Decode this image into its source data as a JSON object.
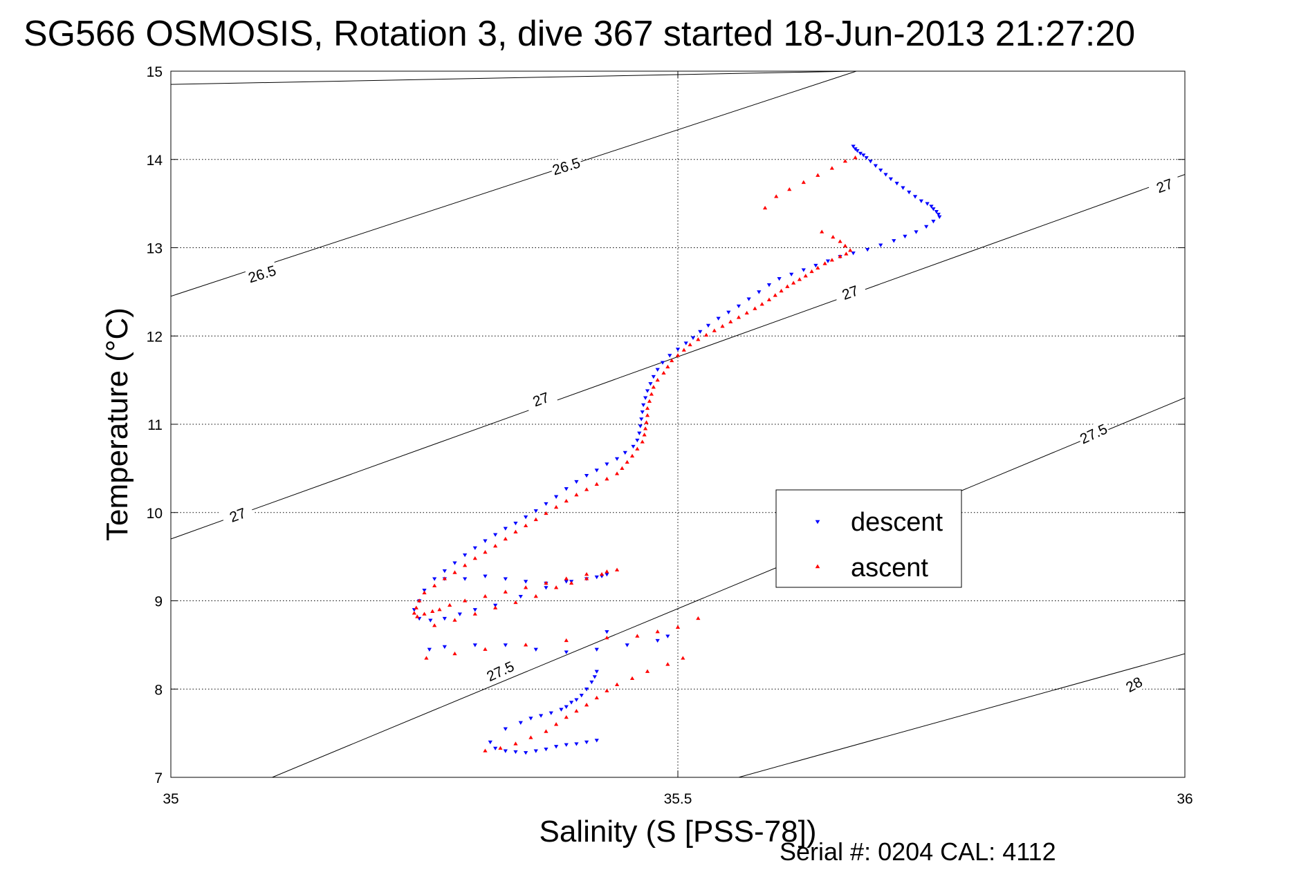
{
  "chart_data": {
    "type": "scatter",
    "title": "SG566 OSMOSIS, Rotation 3, dive 367 started 18-Jun-2013 21:27:20",
    "xlabel": "Salinity (S [PSS-78])",
    "ylabel": "Temperature (°C)",
    "xlim": [
      35,
      36
    ],
    "ylim": [
      7,
      15
    ],
    "x_ticks": [
      "35",
      "35.5",
      "36"
    ],
    "y_ticks": [
      "7",
      "8",
      "9",
      "10",
      "11",
      "12",
      "13",
      "14",
      "15"
    ],
    "grid": true,
    "legend_position": "right",
    "footnote": "Serial #: 0204  CAL: 4112",
    "contours": [
      {
        "label": "26.5",
        "points": [
          [
            35.0,
            14.85
          ],
          [
            35.674,
            15.0
          ]
        ]
      },
      {
        "label": "26.5",
        "points": [
          [
            35.0,
            12.45
          ],
          [
            35.676,
            15.0
          ]
        ]
      },
      {
        "label": "27",
        "points": [
          [
            35.0,
            9.7
          ],
          [
            36.0,
            13.83
          ]
        ]
      },
      {
        "label": "27.5",
        "points": [
          [
            35.1,
            7.0
          ],
          [
            36.0,
            11.3
          ]
        ]
      },
      {
        "label": "28",
        "points": [
          [
            35.56,
            7.0
          ],
          [
            36.0,
            8.4
          ]
        ]
      }
    ],
    "contour_labels": [
      {
        "text": "26.5",
        "x": 35.09,
        "y": 12.7,
        "angle": -17
      },
      {
        "text": "26.5",
        "x": 35.39,
        "y": 13.92,
        "angle": -17
      },
      {
        "text": "27",
        "x": 35.066,
        "y": 9.97,
        "angle": -20
      },
      {
        "text": "27",
        "x": 35.365,
        "y": 11.28,
        "angle": -20
      },
      {
        "text": "27",
        "x": 35.67,
        "y": 12.49,
        "angle": -20
      },
      {
        "text": "27",
        "x": 35.98,
        "y": 13.7,
        "angle": -20
      },
      {
        "text": "27.5",
        "x": 35.325,
        "y": 8.2,
        "angle": -25
      },
      {
        "text": "27.5",
        "x": 35.91,
        "y": 10.89,
        "angle": -25
      },
      {
        "text": "28",
        "x": 35.95,
        "y": 8.05,
        "angle": -28
      }
    ],
    "series": [
      {
        "name": "descent",
        "color": "#0000ff",
        "marker": "triangle-down",
        "x": [
          35.673,
          35.675,
          35.677,
          35.68,
          35.683,
          35.686,
          35.69,
          35.695,
          35.7,
          35.705,
          35.71,
          35.716,
          35.722,
          35.728,
          35.734,
          35.74,
          35.746,
          35.75,
          35.752,
          35.755,
          35.757,
          35.758,
          35.752,
          35.745,
          35.735,
          35.724,
          35.713,
          35.7,
          35.687,
          35.673,
          35.66,
          35.648,
          35.636,
          35.624,
          35.612,
          35.6,
          35.59,
          35.58,
          35.57,
          35.56,
          35.55,
          35.54,
          35.53,
          35.522,
          35.515,
          35.508,
          35.5,
          35.492,
          35.485,
          35.48,
          35.476,
          35.473,
          35.47,
          35.468,
          35.466,
          35.465,
          35.464,
          35.463,
          35.462,
          35.46,
          35.456,
          35.448,
          35.44,
          35.43,
          35.42,
          35.41,
          35.4,
          35.39,
          35.38,
          35.37,
          35.36,
          35.35,
          35.34,
          35.33,
          35.32,
          35.31,
          35.3,
          35.29,
          35.28,
          35.27,
          35.26,
          35.25,
          35.245,
          35.24,
          35.245,
          35.256,
          35.27,
          35.285,
          35.3,
          35.32,
          35.345,
          35.37,
          35.395,
          35.42,
          35.43,
          35.425,
          35.41,
          35.39,
          35.37,
          35.35,
          35.33,
          35.31,
          35.29,
          35.27,
          35.255,
          35.27,
          35.3,
          35.33,
          35.36,
          35.39,
          35.42,
          35.45,
          35.48,
          35.49,
          35.43,
          35.42,
          35.418,
          35.415,
          35.41,
          35.405,
          35.4,
          35.395,
          35.39,
          35.385,
          35.375,
          35.365,
          35.355,
          35.345,
          35.33,
          35.315,
          35.32,
          35.33,
          35.34,
          35.35,
          35.36,
          35.37,
          35.38,
          35.39,
          35.4,
          35.41,
          35.42
        ],
        "y": [
          14.15,
          14.12,
          14.1,
          14.07,
          14.05,
          14.02,
          13.98,
          13.93,
          13.88,
          13.83,
          13.78,
          13.73,
          13.68,
          13.63,
          13.58,
          13.53,
          13.5,
          13.47,
          13.44,
          13.41,
          13.38,
          13.35,
          13.3,
          13.24,
          13.18,
          13.13,
          13.08,
          13.03,
          12.98,
          12.94,
          12.9,
          12.85,
          12.8,
          12.75,
          12.7,
          12.65,
          12.58,
          12.5,
          12.42,
          12.34,
          12.27,
          12.2,
          12.12,
          12.05,
          11.98,
          11.92,
          11.85,
          11.78,
          11.7,
          11.62,
          11.54,
          11.46,
          11.38,
          11.3,
          11.22,
          11.14,
          11.06,
          10.98,
          10.9,
          10.82,
          10.75,
          10.68,
          10.61,
          10.55,
          10.48,
          10.42,
          10.35,
          10.27,
          10.18,
          10.1,
          10.02,
          9.95,
          9.88,
          9.82,
          9.75,
          9.68,
          9.6,
          9.52,
          9.43,
          9.34,
          9.25,
          9.12,
          9.0,
          8.9,
          8.8,
          8.78,
          8.8,
          8.85,
          8.9,
          8.95,
          9.05,
          9.15,
          9.22,
          9.27,
          9.3,
          9.28,
          9.25,
          9.22,
          9.2,
          9.22,
          9.25,
          9.28,
          9.25,
          9.25,
          8.45,
          8.48,
          8.5,
          8.5,
          8.45,
          8.42,
          8.45,
          8.5,
          8.55,
          8.6,
          8.65,
          8.2,
          8.14,
          8.08,
          8.0,
          7.93,
          7.88,
          7.85,
          7.8,
          7.77,
          7.73,
          7.7,
          7.67,
          7.62,
          7.55,
          7.4,
          7.33,
          7.3,
          7.29,
          7.28,
          7.3,
          7.32,
          7.35,
          7.37,
          7.38,
          7.4,
          7.42
        ]
      },
      {
        "name": "ascent",
        "color": "#ff0000",
        "marker": "triangle-up",
        "x": [
          35.675,
          35.665,
          35.652,
          35.638,
          35.624,
          35.61,
          35.597,
          35.586,
          35.642,
          35.653,
          35.66,
          35.665,
          35.67,
          35.666,
          35.66,
          35.652,
          35.645,
          35.638,
          35.632,
          35.626,
          35.62,
          35.614,
          35.608,
          35.602,
          35.596,
          35.59,
          35.583,
          35.576,
          35.568,
          35.56,
          35.552,
          35.544,
          35.536,
          35.528,
          35.52,
          35.512,
          35.506,
          35.5,
          35.494,
          35.49,
          35.486,
          35.48,
          35.476,
          35.474,
          35.472,
          35.47,
          35.47,
          35.469,
          35.468,
          35.467,
          35.465,
          35.46,
          35.455,
          35.45,
          35.445,
          35.44,
          35.43,
          35.42,
          35.41,
          35.4,
          35.39,
          35.38,
          35.37,
          35.36,
          35.35,
          35.34,
          35.33,
          35.32,
          35.31,
          35.3,
          35.29,
          35.28,
          35.27,
          35.26,
          35.25,
          35.245,
          35.242,
          35.24,
          35.243,
          35.25,
          35.258,
          35.265,
          35.275,
          35.29,
          35.31,
          35.33,
          35.35,
          35.37,
          35.39,
          35.41,
          35.43,
          35.44,
          35.425,
          35.41,
          35.395,
          35.38,
          35.36,
          35.34,
          35.32,
          35.3,
          35.28,
          35.26,
          35.252,
          35.28,
          35.31,
          35.35,
          35.39,
          35.43,
          35.46,
          35.48,
          35.5,
          35.52,
          35.505,
          35.49,
          35.47,
          35.455,
          35.44,
          35.43,
          35.42,
          35.41,
          35.4,
          35.39,
          35.38,
          35.37,
          35.355,
          35.34,
          35.325,
          35.31
        ],
        "y": [
          14.02,
          13.98,
          13.9,
          13.82,
          13.74,
          13.66,
          13.58,
          13.45,
          13.18,
          13.12,
          13.07,
          13.02,
          12.97,
          12.93,
          12.9,
          12.86,
          12.82,
          12.77,
          12.73,
          12.68,
          12.64,
          12.6,
          12.56,
          12.51,
          12.46,
          12.41,
          12.36,
          12.31,
          12.26,
          12.21,
          12.16,
          12.11,
          12.06,
          12.01,
          11.96,
          11.9,
          11.84,
          11.78,
          11.72,
          11.65,
          11.58,
          11.5,
          11.42,
          11.34,
          11.26,
          11.18,
          11.1,
          11.02,
          10.95,
          10.88,
          10.8,
          10.72,
          10.64,
          10.57,
          10.5,
          10.44,
          10.38,
          10.32,
          10.26,
          10.2,
          10.13,
          10.06,
          9.99,
          9.92,
          9.85,
          9.78,
          9.7,
          9.62,
          9.55,
          9.48,
          9.4,
          9.32,
          9.25,
          9.17,
          9.09,
          9.0,
          8.92,
          8.86,
          8.82,
          8.85,
          8.88,
          8.9,
          8.95,
          9.0,
          9.05,
          9.1,
          9.15,
          9.2,
          9.25,
          9.3,
          9.33,
          9.35,
          9.3,
          9.25,
          9.2,
          9.15,
          9.05,
          8.98,
          8.92,
          8.85,
          8.78,
          8.72,
          8.35,
          8.4,
          8.45,
          8.5,
          8.55,
          8.58,
          8.6,
          8.65,
          8.7,
          8.8,
          8.35,
          8.28,
          8.2,
          8.12,
          8.05,
          7.98,
          7.9,
          7.82,
          7.75,
          7.68,
          7.6,
          7.52,
          7.45,
          7.38,
          7.33,
          7.3
        ]
      }
    ]
  }
}
